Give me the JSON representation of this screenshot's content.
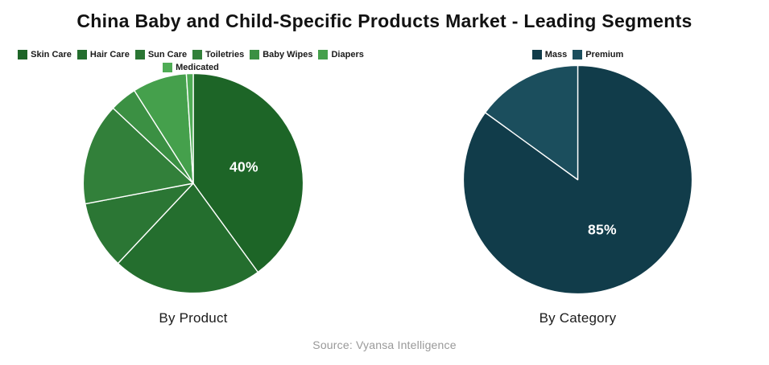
{
  "page_title": "China Baby and Child-Specific Products Market - Leading Segments",
  "source_note": "Source: Vyansa Intelligence",
  "chart_data": [
    {
      "type": "pie",
      "title": "By Product",
      "labels": [
        "Skin Care",
        "Hair Care",
        "Sun Care",
        "Toiletries",
        "Baby Wipes",
        "Diapers",
        "Medicated"
      ],
      "values": [
        40,
        22,
        10,
        15,
        4,
        8,
        1
      ],
      "colors": [
        "#1d6527",
        "#246e2e",
        "#2b7634",
        "#32803a",
        "#3b9043",
        "#45a04c",
        "#4fac55"
      ],
      "shown_label": {
        "text": "40%",
        "slice": "Skin Care"
      },
      "legend_position": "top",
      "start_angle": "12-oclock",
      "direction": "clockwise"
    },
    {
      "type": "pie",
      "title": "By Category",
      "labels": [
        "Mass",
        "Premium"
      ],
      "values": [
        85,
        15
      ],
      "colors": [
        "#113c4a",
        "#1b4e5d"
      ],
      "shown_label": {
        "text": "85%",
        "slice": "Mass"
      },
      "legend_position": "top",
      "start_angle": "12-oclock",
      "direction": "clockwise"
    }
  ]
}
